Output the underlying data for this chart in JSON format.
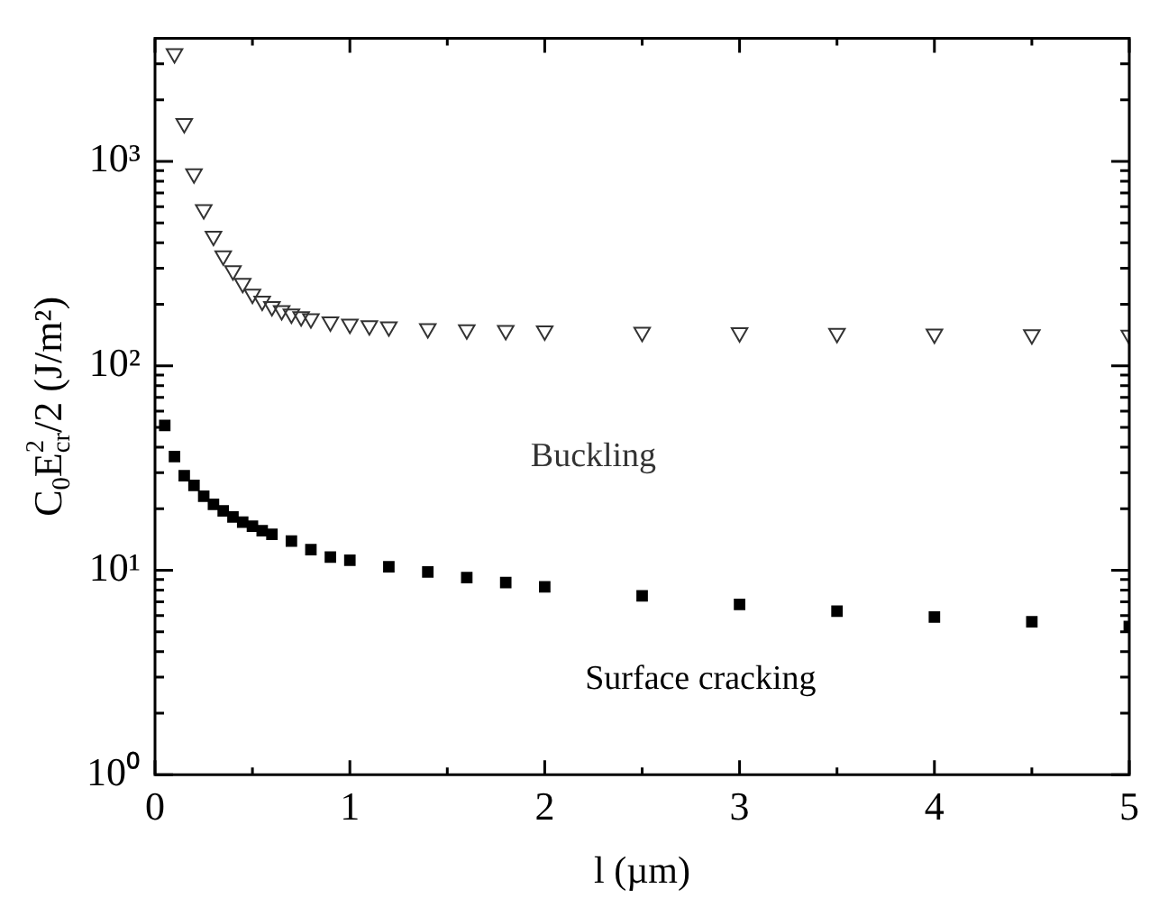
{
  "chart_data": {
    "type": "scatter",
    "xlabel": "l (µm)",
    "ylabel": "C$_{0}$E$^{2}$$_{cr}$/2 (J/m²)",
    "log": "y",
    "grid": false,
    "legend": false,
    "xlim": [
      0,
      5
    ],
    "ylim": [
      1,
      4000
    ],
    "xticks": [
      0,
      {
        "value": 0.5,
        "label": null
      },
      1,
      {
        "value": 1.5,
        "label": null
      },
      2,
      {
        "value": 2.5,
        "label": null
      },
      3,
      {
        "value": 3.5,
        "label": null
      },
      4,
      {
        "value": 4.5,
        "label": null
      },
      5
    ],
    "yticks": [
      {
        "value": 1,
        "label": "10⁰"
      },
      {
        "value": 2,
        "label": null
      },
      {
        "value": 3,
        "label": null
      },
      {
        "value": 4,
        "label": null
      },
      {
        "value": 5,
        "label": null
      },
      {
        "value": 6,
        "label": null
      },
      {
        "value": 7,
        "label": null
      },
      {
        "value": 8,
        "label": null
      },
      {
        "value": 9,
        "label": null
      },
      {
        "value": 10,
        "label": "10¹"
      },
      {
        "value": 20,
        "label": null
      },
      {
        "value": 30,
        "label": null
      },
      {
        "value": 40,
        "label": null
      },
      {
        "value": 50,
        "label": null
      },
      {
        "value": 60,
        "label": null
      },
      {
        "value": 70,
        "label": null
      },
      {
        "value": 80,
        "label": null
      },
      {
        "value": 90,
        "label": null
      },
      {
        "value": 100,
        "label": "10²"
      },
      {
        "value": 200,
        "label": null
      },
      {
        "value": 300,
        "label": null
      },
      {
        "value": 400,
        "label": null
      },
      {
        "value": 500,
        "label": null
      },
      {
        "value": 600,
        "label": null
      },
      {
        "value": 700,
        "label": null
      },
      {
        "value": 800,
        "label": null
      },
      {
        "value": 900,
        "label": null
      },
      {
        "value": 1000,
        "label": "10³"
      },
      {
        "value": 2000,
        "label": null
      },
      {
        "value": 3000,
        "label": null
      }
    ],
    "series": [
      {
        "name": "Buckling",
        "color": "#333333",
        "marker": "triangle",
        "x": [
          0.1,
          0.15,
          0.2,
          0.25,
          0.3,
          0.35,
          0.4,
          0.45,
          0.5,
          0.55,
          0.6,
          0.65,
          0.7,
          0.75,
          0.8,
          0.9,
          1.0,
          1.1,
          1.2,
          1.4,
          1.6,
          1.8,
          2.0,
          2.5,
          3.0,
          3.5,
          4.0,
          4.5,
          5.0
        ],
        "values": [
          3360,
          1530,
          870,
          580,
          430,
          345,
          292,
          253,
          224,
          207,
          195,
          186,
          179,
          174,
          170,
          164,
          160,
          157,
          155,
          152,
          150,
          149,
          148,
          146,
          145,
          144,
          143,
          142,
          141
        ]
      },
      {
        "name": "Surface cracking",
        "color": "#000000",
        "marker": "square",
        "x": [
          0.05,
          0.1,
          0.15,
          0.2,
          0.25,
          0.3,
          0.35,
          0.4,
          0.45,
          0.5,
          0.55,
          0.6,
          0.7,
          0.8,
          0.9,
          1.0,
          1.2,
          1.4,
          1.6,
          1.8,
          2.0,
          2.5,
          3.0,
          3.5,
          4.0,
          4.5,
          5.0
        ],
        "values": [
          51,
          36,
          29,
          26,
          23,
          21,
          19.5,
          18.2,
          17.2,
          16.4,
          15.6,
          15.0,
          13.9,
          12.6,
          11.6,
          11.2,
          10.4,
          9.8,
          9.2,
          8.7,
          8.3,
          7.5,
          6.8,
          6.3,
          5.9,
          5.6,
          5.3
        ]
      }
    ]
  }
}
